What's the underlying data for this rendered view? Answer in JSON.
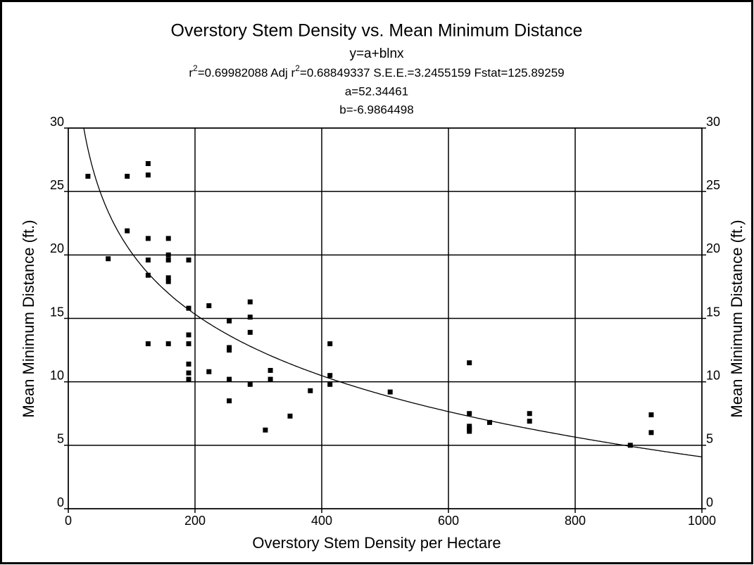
{
  "chart_data": {
    "type": "scatter",
    "title": "Overstory Stem Density vs. Mean Minimum Distance",
    "subtitle": "y=a+blnx",
    "stats_line": [
      "r",
      "2",
      "=0.69982088  Adj r",
      "2",
      "=0.68849337  S.E.E.=3.2455159  Fstat=125.89259"
    ],
    "fit": {
      "a": 52.34461,
      "b": -6.9864498,
      "a_label": "a=52.34461",
      "b_label": "b=-6.9864498"
    },
    "x_label": "Overstory Stem Density per Hectare",
    "y_label": "Mean Minimum Distance (ft.)",
    "y2_label": "Mean Minimum Distance (ft.)",
    "xlim": [
      0,
      1000
    ],
    "xticks": [
      0,
      200,
      400,
      600,
      800,
      1000
    ],
    "ylim": [
      0,
      30
    ],
    "yticks": [
      0,
      5,
      10,
      15,
      20,
      25,
      30
    ],
    "y2lim": [
      0,
      30
    ],
    "y2ticks": [
      0,
      5,
      10,
      15,
      20,
      25,
      30
    ],
    "grid": true,
    "color": "#000000",
    "x": [
      31,
      63,
      93,
      93,
      126,
      126,
      126,
      126,
      126,
      126,
      158,
      158,
      158,
      158,
      158,
      158,
      190,
      190,
      190,
      190,
      190,
      190,
      190,
      222,
      222,
      254,
      254,
      254,
      254,
      254,
      287,
      287,
      287,
      287,
      311,
      319,
      319,
      350,
      382,
      413,
      413,
      413,
      508,
      633,
      633,
      633,
      633,
      633,
      665,
      728,
      728,
      887,
      920,
      920
    ],
    "values": [
      26.2,
      19.7,
      26.2,
      21.9,
      27.2,
      26.3,
      21.3,
      19.6,
      18.4,
      13.0,
      21.3,
      20.0,
      19.6,
      18.2,
      17.9,
      13.0,
      19.6,
      15.8,
      13.7,
      13.0,
      11.4,
      10.7,
      10.2,
      16.0,
      10.8,
      14.8,
      12.7,
      12.5,
      10.2,
      8.5,
      16.3,
      15.1,
      13.9,
      9.8,
      6.2,
      10.9,
      10.2,
      7.3,
      9.3,
      13.0,
      10.5,
      9.8,
      9.2,
      11.5,
      7.5,
      6.5,
      6.3,
      6.1,
      6.8,
      7.5,
      6.9,
      5.0,
      7.4,
      6.0
    ]
  }
}
